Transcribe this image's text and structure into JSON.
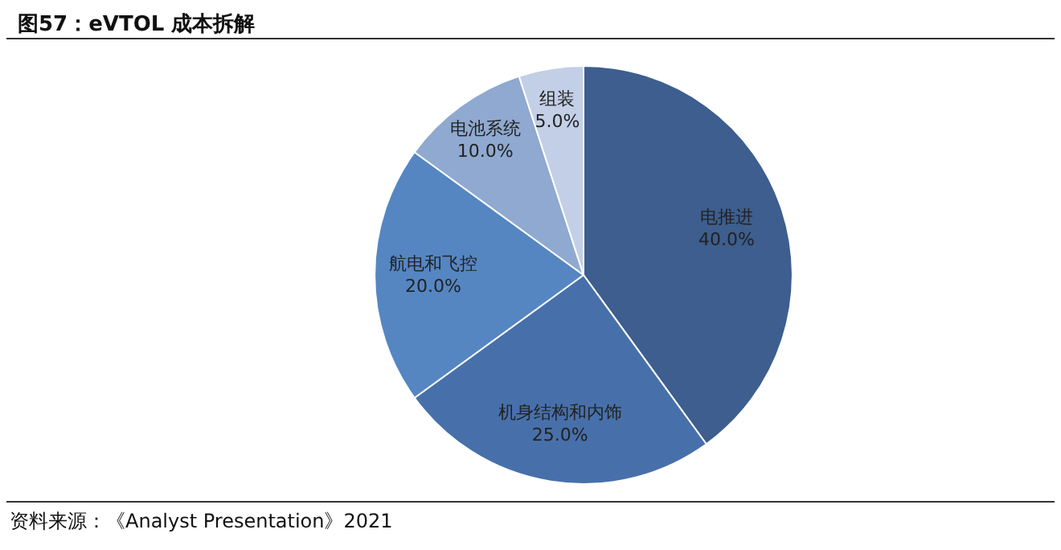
{
  "chart_data": {
    "type": "pie",
    "title": "图57：eVTOL 成本拆解",
    "categories": [
      "电推进",
      "机身结构和内饰",
      "航电和飞控",
      "电池系统",
      "组装"
    ],
    "values": [
      40,
      25,
      20,
      10,
      5
    ],
    "value_labels": [
      "40.0%",
      "25.0%",
      "20.0%",
      "10.0%",
      "5.0%"
    ],
    "colors": [
      "#3d5e8e",
      "#4770aa",
      "#5586c2",
      "#8fa9d0",
      "#c3cfe6"
    ],
    "legend": false,
    "annotations": [
      "资料来源：《Analyst Presentation》2021"
    ]
  }
}
